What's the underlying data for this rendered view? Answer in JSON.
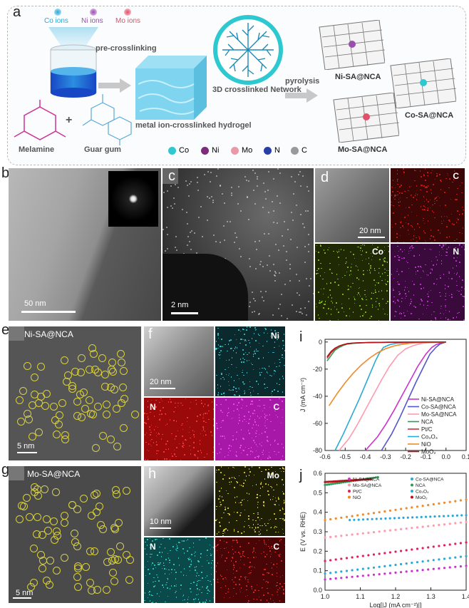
{
  "panels": {
    "a": "a",
    "b": "b",
    "c": "c",
    "d": "d",
    "e": "e",
    "f": "f",
    "g": "g",
    "h": "h",
    "i": "i",
    "j": "j"
  },
  "schema": {
    "ions": [
      "Co ions",
      "Ni ions",
      "Mo ions"
    ],
    "ion_colors": [
      "#2aa9d6",
      "#9b4db0",
      "#e0506a"
    ],
    "pre_crosslinking": "pre-crosslinking",
    "hydrogel": "metal ion-crosslinked hydrogel",
    "network": "3D crosslinked Network",
    "pyrolysis": "pyrolysis",
    "melamine": "Melamine",
    "guar": "Guar gum",
    "plus": "+",
    "products": [
      "Ni-SA@NCA",
      "Co-SA@NCA",
      "Mo-SA@NCA"
    ],
    "legend": [
      "Co",
      "Ni",
      "Mo",
      "N",
      "C"
    ]
  },
  "scales": {
    "b": "50 nm",
    "c": "2 nm",
    "d": "20 nm",
    "e": "5 nm",
    "f": "20 nm",
    "g": "5 nm",
    "h": "10 nm"
  },
  "maps": {
    "d": [
      "C",
      "Co",
      "N"
    ],
    "f": [
      "Ni",
      "N",
      "C"
    ],
    "h": [
      "Mo",
      "N",
      "C"
    ]
  },
  "titles": {
    "e": "Ni-SA@NCA",
    "g": "Mo-SA@NCA"
  },
  "chart_data": [
    {
      "type": "line",
      "panel": "i",
      "xlabel": "",
      "ylabel": "J (mA cm⁻²)",
      "xlim": [
        -0.6,
        0.1
      ],
      "ylim": [
        -80,
        2
      ],
      "xticks": [
        "-0.6",
        "-0.5",
        "-0.4",
        "-0.3",
        "-0.2",
        "-0.1",
        "0.0",
        "0.1"
      ],
      "yticks": [
        "0",
        "-20",
        "-40",
        "-60",
        "-80"
      ],
      "legend_position": "center-right",
      "series": [
        {
          "name": "Ni-SA@NCA",
          "color": "#cc33cc",
          "x": [
            -0.4,
            -0.34,
            -0.3,
            -0.26,
            -0.22,
            -0.18,
            -0.14,
            -0.1,
            -0.07,
            -0.05,
            -0.03,
            0.0
          ],
          "y": [
            -80,
            -70,
            -61,
            -51,
            -40,
            -29,
            -18,
            -9,
            -4,
            -2,
            -1,
            0
          ]
        },
        {
          "name": "Co-SA@NCA",
          "color": "#5555cc",
          "x": [
            -0.32,
            -0.27,
            -0.23,
            -0.19,
            -0.15,
            -0.11,
            -0.08,
            -0.05,
            -0.03,
            0.0
          ],
          "y": [
            -80,
            -68,
            -56,
            -43,
            -30,
            -18,
            -9,
            -4,
            -1.5,
            0
          ]
        },
        {
          "name": "Mo-SA@NCA",
          "color": "#ff9ab0",
          "x": [
            -0.53,
            -0.48,
            -0.44,
            -0.4,
            -0.36,
            -0.32,
            -0.28,
            -0.24,
            -0.2,
            -0.16,
            -0.12,
            -0.08,
            0.0
          ],
          "y": [
            -80,
            -71,
            -61,
            -50,
            -39,
            -28,
            -18,
            -10,
            -5,
            -2.5,
            -1,
            -0.5,
            0
          ]
        },
        {
          "name": "NCA",
          "color": "#2a9d5a",
          "x": [
            -0.59,
            -0.57,
            -0.55,
            -0.53,
            -0.51,
            -0.49,
            -0.46,
            -0.42,
            -0.36,
            -0.28,
            -0.15,
            0.0
          ],
          "y": [
            -14,
            -10,
            -6,
            -4,
            -2.5,
            -1.5,
            -1,
            -0.6,
            -0.3,
            -0.2,
            -0.1,
            0
          ]
        },
        {
          "name": "Pt/C",
          "color": "#cc3333",
          "x": [
            -0.59,
            -0.57,
            -0.55,
            -0.53,
            -0.51,
            -0.49,
            -0.46,
            -0.42,
            -0.36,
            -0.28,
            -0.15,
            0.0
          ],
          "y": [
            -12,
            -8,
            -5,
            -3,
            -2,
            -1.2,
            -0.8,
            -0.5,
            -0.3,
            -0.2,
            -0.1,
            0
          ]
        },
        {
          "name": "Co₃O₄",
          "color": "#2aa9d6",
          "x": [
            -0.55,
            -0.51,
            -0.47,
            -0.43,
            -0.39,
            -0.35,
            -0.33,
            -0.31,
            -0.28,
            -0.25,
            -0.2,
            -0.1,
            0.0
          ],
          "y": [
            -80,
            -68,
            -55,
            -42,
            -28,
            -14,
            -8,
            -4,
            -2,
            -1,
            -0.5,
            -0.2,
            0
          ]
        },
        {
          "name": "NiO",
          "color": "#f08a2a",
          "x": [
            -0.58,
            -0.54,
            -0.5,
            -0.46,
            -0.42,
            -0.38,
            -0.34,
            -0.3,
            -0.26,
            -0.22,
            -0.18,
            -0.14,
            -0.1,
            0.0
          ],
          "y": [
            -47,
            -38,
            -30,
            -23,
            -17,
            -12,
            -8,
            -5,
            -3,
            -1.8,
            -1,
            -0.5,
            -0.2,
            0
          ]
        },
        {
          "name": "MoO₂",
          "color": "#b5121b",
          "x": [
            -0.59,
            -0.57,
            -0.55,
            -0.53,
            -0.51,
            -0.49,
            -0.46,
            -0.42,
            -0.36,
            -0.28,
            -0.15,
            0.0
          ],
          "y": [
            -11,
            -7,
            -4.5,
            -3,
            -2,
            -1.3,
            -0.8,
            -0.5,
            -0.3,
            -0.2,
            -0.1,
            0
          ]
        }
      ]
    },
    {
      "type": "scatter",
      "panel": "j",
      "xlabel": "Log[|J (mA cm⁻²)|]",
      "ylabel": "E (V vs. RHE)",
      "xlim": [
        1.0,
        1.4
      ],
      "ylim": [
        0.0,
        0.6
      ],
      "xticks": [
        "1.0",
        "1.1",
        "1.2",
        "1.3",
        "1.4"
      ],
      "yticks": [
        "0.0",
        "0.1",
        "0.2",
        "0.3",
        "0.4",
        "0.5",
        "0.6"
      ],
      "legend_position": "top",
      "series": [
        {
          "name": "Ni-SA@NCA",
          "color": "#cc33cc",
          "x": [
            1.0,
            1.4
          ],
          "y": [
            0.055,
            0.125
          ]
        },
        {
          "name": "Co-SA@NCA",
          "color": "#2aa9d6",
          "x": [
            1.0,
            1.4
          ],
          "y": [
            0.085,
            0.175
          ]
        },
        {
          "name": "Mo-SA@NCA",
          "color": "#ff9ab0",
          "x": [
            1.0,
            1.4
          ],
          "y": [
            0.27,
            0.35
          ]
        },
        {
          "name": "NCA",
          "color": "#2a9d5a",
          "x": [
            1.0,
            1.15
          ],
          "y": [
            0.54,
            0.58
          ]
        },
        {
          "name": "Pt/C",
          "color": "#e02060",
          "x": [
            1.0,
            1.4
          ],
          "y": [
            0.15,
            0.245
          ]
        },
        {
          "name": "Co₃O₄",
          "color": "#2aa9d6",
          "x": [
            1.07,
            1.4
          ],
          "y": [
            0.36,
            0.385
          ]
        },
        {
          "name": "NiO",
          "color": "#f08a2a",
          "x": [
            1.0,
            1.4
          ],
          "y": [
            0.36,
            0.465
          ]
        },
        {
          "name": "MoO₂",
          "color": "#b5121b",
          "x": [
            1.0,
            1.13
          ],
          "y": [
            0.555,
            0.57
          ]
        }
      ]
    }
  ]
}
